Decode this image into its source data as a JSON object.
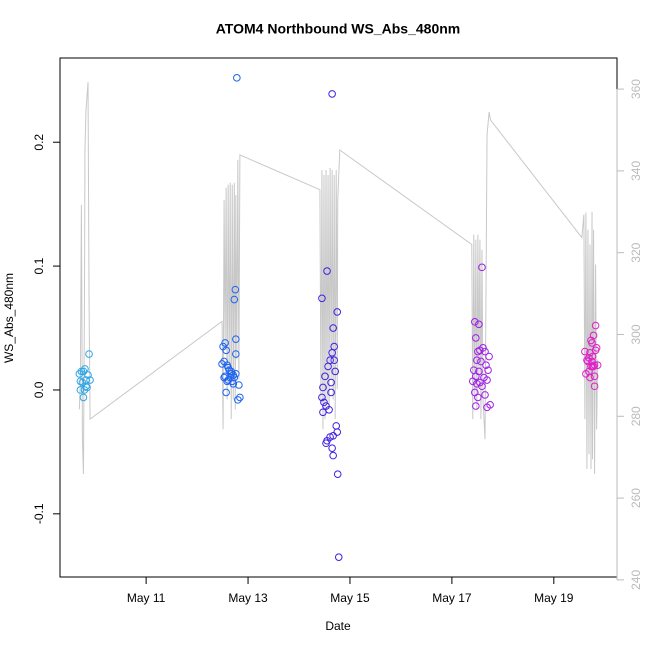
{
  "chart_data": {
    "type": "scatter",
    "title": "ATOM4 Northbound WS_Abs_480nm",
    "xlabel": "Date",
    "ylabel": "WS_Abs_480nm",
    "xlim": [
      9.31,
      20.24
    ],
    "ylim": [
      -0.151,
      0.268
    ],
    "y2lim": [
      240.7,
      367.6
    ],
    "xticks": [
      {
        "value": 11,
        "label": "May 11"
      },
      {
        "value": 13,
        "label": "May 13"
      },
      {
        "value": 15,
        "label": "May 15"
      },
      {
        "value": 17,
        "label": "May 17"
      },
      {
        "value": 19,
        "label": "May 19"
      }
    ],
    "yticks": [
      -0.1,
      {
        "value": 0,
        "label": "0.0"
      },
      0.1,
      0.2
    ],
    "y2ticks": [
      240,
      260,
      280,
      300,
      320,
      340,
      360
    ],
    "y2color": "#bbbbbb",
    "series": [
      {
        "type": "line",
        "axis": "y2",
        "color": "#c8c8c8",
        "x": [
          9.69,
          9.71,
          9.73,
          9.75,
          9.77,
          9.79,
          9.8,
          9.82,
          9.86,
          9.88,
          9.9,
          12.49,
          12.51,
          12.53,
          12.55,
          12.57,
          12.59,
          12.61,
          12.63,
          12.65,
          12.67,
          12.69,
          12.71,
          12.73,
          12.75,
          12.76,
          12.78,
          12.8,
          12.82,
          12.84,
          14.41,
          14.43,
          14.45,
          14.47,
          14.49,
          14.51,
          14.53,
          14.55,
          14.57,
          14.59,
          14.61,
          14.63,
          14.65,
          14.67,
          14.69,
          14.71,
          14.73,
          14.75,
          14.76,
          14.8,
          17.39,
          17.41,
          17.43,
          17.45,
          17.47,
          17.49,
          17.51,
          17.53,
          17.55,
          17.57,
          17.59,
          17.61,
          17.65,
          17.69,
          17.73,
          17.76,
          19.55,
          19.59,
          19.61,
          19.63,
          19.65,
          19.67,
          19.69,
          19.71,
          19.73,
          19.75,
          19.76,
          19.78,
          19.8,
          19.82,
          19.84,
          19.86
        ],
        "values": [
          281.7,
          289.0,
          331.7,
          274.4,
          265.9,
          308.5,
          345.1,
          354.9,
          361.7,
          308.5,
          279.3,
          303.2,
          276.8,
          332.9,
          296.3,
          335.9,
          284.1,
          336.6,
          289.0,
          337.1,
          279.3,
          336.6,
          284.1,
          337.1,
          281.7,
          334.1,
          293.9,
          342.7,
          289.0,
          343.9,
          335.4,
          284.1,
          340.2,
          276.8,
          339.0,
          279.3,
          340.2,
          284.1,
          339.0,
          281.7,
          340.7,
          289.0,
          340.2,
          284.1,
          339.0,
          279.3,
          340.2,
          286.6,
          332.9,
          345.1,
          322.0,
          279.3,
          324.4,
          284.1,
          323.2,
          281.7,
          324.4,
          289.0,
          323.2,
          279.3,
          320.7,
          284.1,
          274.4,
          348.8,
          354.4,
          352.4,
          323.7,
          329.3,
          279.3,
          329.8,
          267.1,
          325.6,
          270.7,
          322.0,
          267.1,
          330.0,
          269.5,
          325.6,
          265.9,
          317.1,
          276.8,
          293.9
        ]
      },
      {
        "color": "#2fa6e6",
        "x": [
          9.69,
          9.73,
          9.77,
          9.8,
          9.71,
          9.75,
          9.82,
          9.79,
          9.71,
          9.86,
          9.84,
          9.88,
          9.77,
          9.82,
          9.9
        ],
        "values": [
          0.013,
          0.015,
          0.015,
          0.017,
          0.007,
          0.006,
          0.008,
          0,
          0,
          0.012,
          0.002,
          0.029,
          -0.006,
          0.003,
          0.008
        ]
      },
      {
        "color": "#1e64f0",
        "x": [
          12.78,
          12.75,
          12.73,
          12.76,
          12.55,
          12.51,
          12.57,
          12.53,
          12.59,
          12.63,
          12.67,
          12.71,
          12.49,
          12.55,
          12.61,
          12.69,
          12.65,
          12.76,
          12.82,
          12.84,
          12.8,
          12.57,
          12.67,
          12.73,
          12.61,
          12.53,
          12.59,
          12.71,
          12.76
        ],
        "values": [
          0.252,
          0.081,
          0.073,
          0.041,
          0.038,
          0.035,
          0.032,
          0.023,
          0.02,
          0.016,
          0.015,
          0.012,
          0.021,
          0.011,
          0.008,
          0.007,
          0.01,
          0.029,
          0.004,
          -0.006,
          -0.008,
          -0.002,
          0.013,
          0.01,
          0.018,
          0.01,
          0.007,
          0.005,
          0.013
        ]
      },
      {
        "color": "#4020e0",
        "x": [
          14.65,
          14.55,
          14.45,
          14.75,
          14.67,
          14.69,
          14.65,
          14.61,
          14.71,
          14.51,
          14.63,
          14.57,
          14.45,
          14.49,
          14.53,
          14.47,
          14.59,
          14.55,
          14.53,
          14.61,
          14.73,
          14.75,
          14.67,
          14.65,
          14.67,
          14.76,
          14.78,
          14.47,
          14.69,
          14.63
        ],
        "values": [
          0.239,
          0.096,
          0.074,
          0.063,
          0.05,
          0.035,
          0.03,
          0.024,
          0.015,
          0.011,
          0.006,
          0.019,
          -0.006,
          -0.01,
          -0.013,
          -0.018,
          -0.016,
          -0.041,
          -0.043,
          -0.038,
          -0.029,
          -0.034,
          -0.037,
          -0.047,
          -0.053,
          -0.068,
          -0.135,
          0.002,
          0.024,
          -0.002
        ]
      },
      {
        "color": "#a020e8",
        "x": [
          17.59,
          17.45,
          17.53,
          17.47,
          17.61,
          17.55,
          17.51,
          17.65,
          17.73,
          17.49,
          17.57,
          17.67,
          17.43,
          17.53,
          17.71,
          17.47,
          17.63,
          17.41,
          17.55,
          17.69,
          17.49,
          17.59,
          17.45,
          17.65,
          17.47,
          17.69,
          17.75,
          17.51
        ],
        "values": [
          0.099,
          0.055,
          0.053,
          0.042,
          0.034,
          0.032,
          0.031,
          0.031,
          0.027,
          0.024,
          0.023,
          0.02,
          0.016,
          0.015,
          0.016,
          0.011,
          0.01,
          0.007,
          0.006,
          0.008,
          0.005,
          0.003,
          -0.002,
          -0.004,
          -0.013,
          -0.014,
          -0.012,
          -0.006
        ]
      },
      {
        "color": "#e020c8",
        "x": [
          19.82,
          19.78,
          19.73,
          19.75,
          19.84,
          19.61,
          19.71,
          19.76,
          19.69,
          19.82,
          19.65,
          19.75,
          19.8,
          19.67,
          19.73,
          19.76,
          19.78,
          19.63,
          19.71,
          19.8,
          19.8,
          19.69,
          19.86
        ],
        "values": [
          0.052,
          0.044,
          0.04,
          0.038,
          0.034,
          0.031,
          0.03,
          0.027,
          0.026,
          0.032,
          0.024,
          0.023,
          0.02,
          0.023,
          0.019,
          0.019,
          0.019,
          0.013,
          0.01,
          0.011,
          0.003,
          0.015,
          0.02
        ]
      }
    ]
  }
}
